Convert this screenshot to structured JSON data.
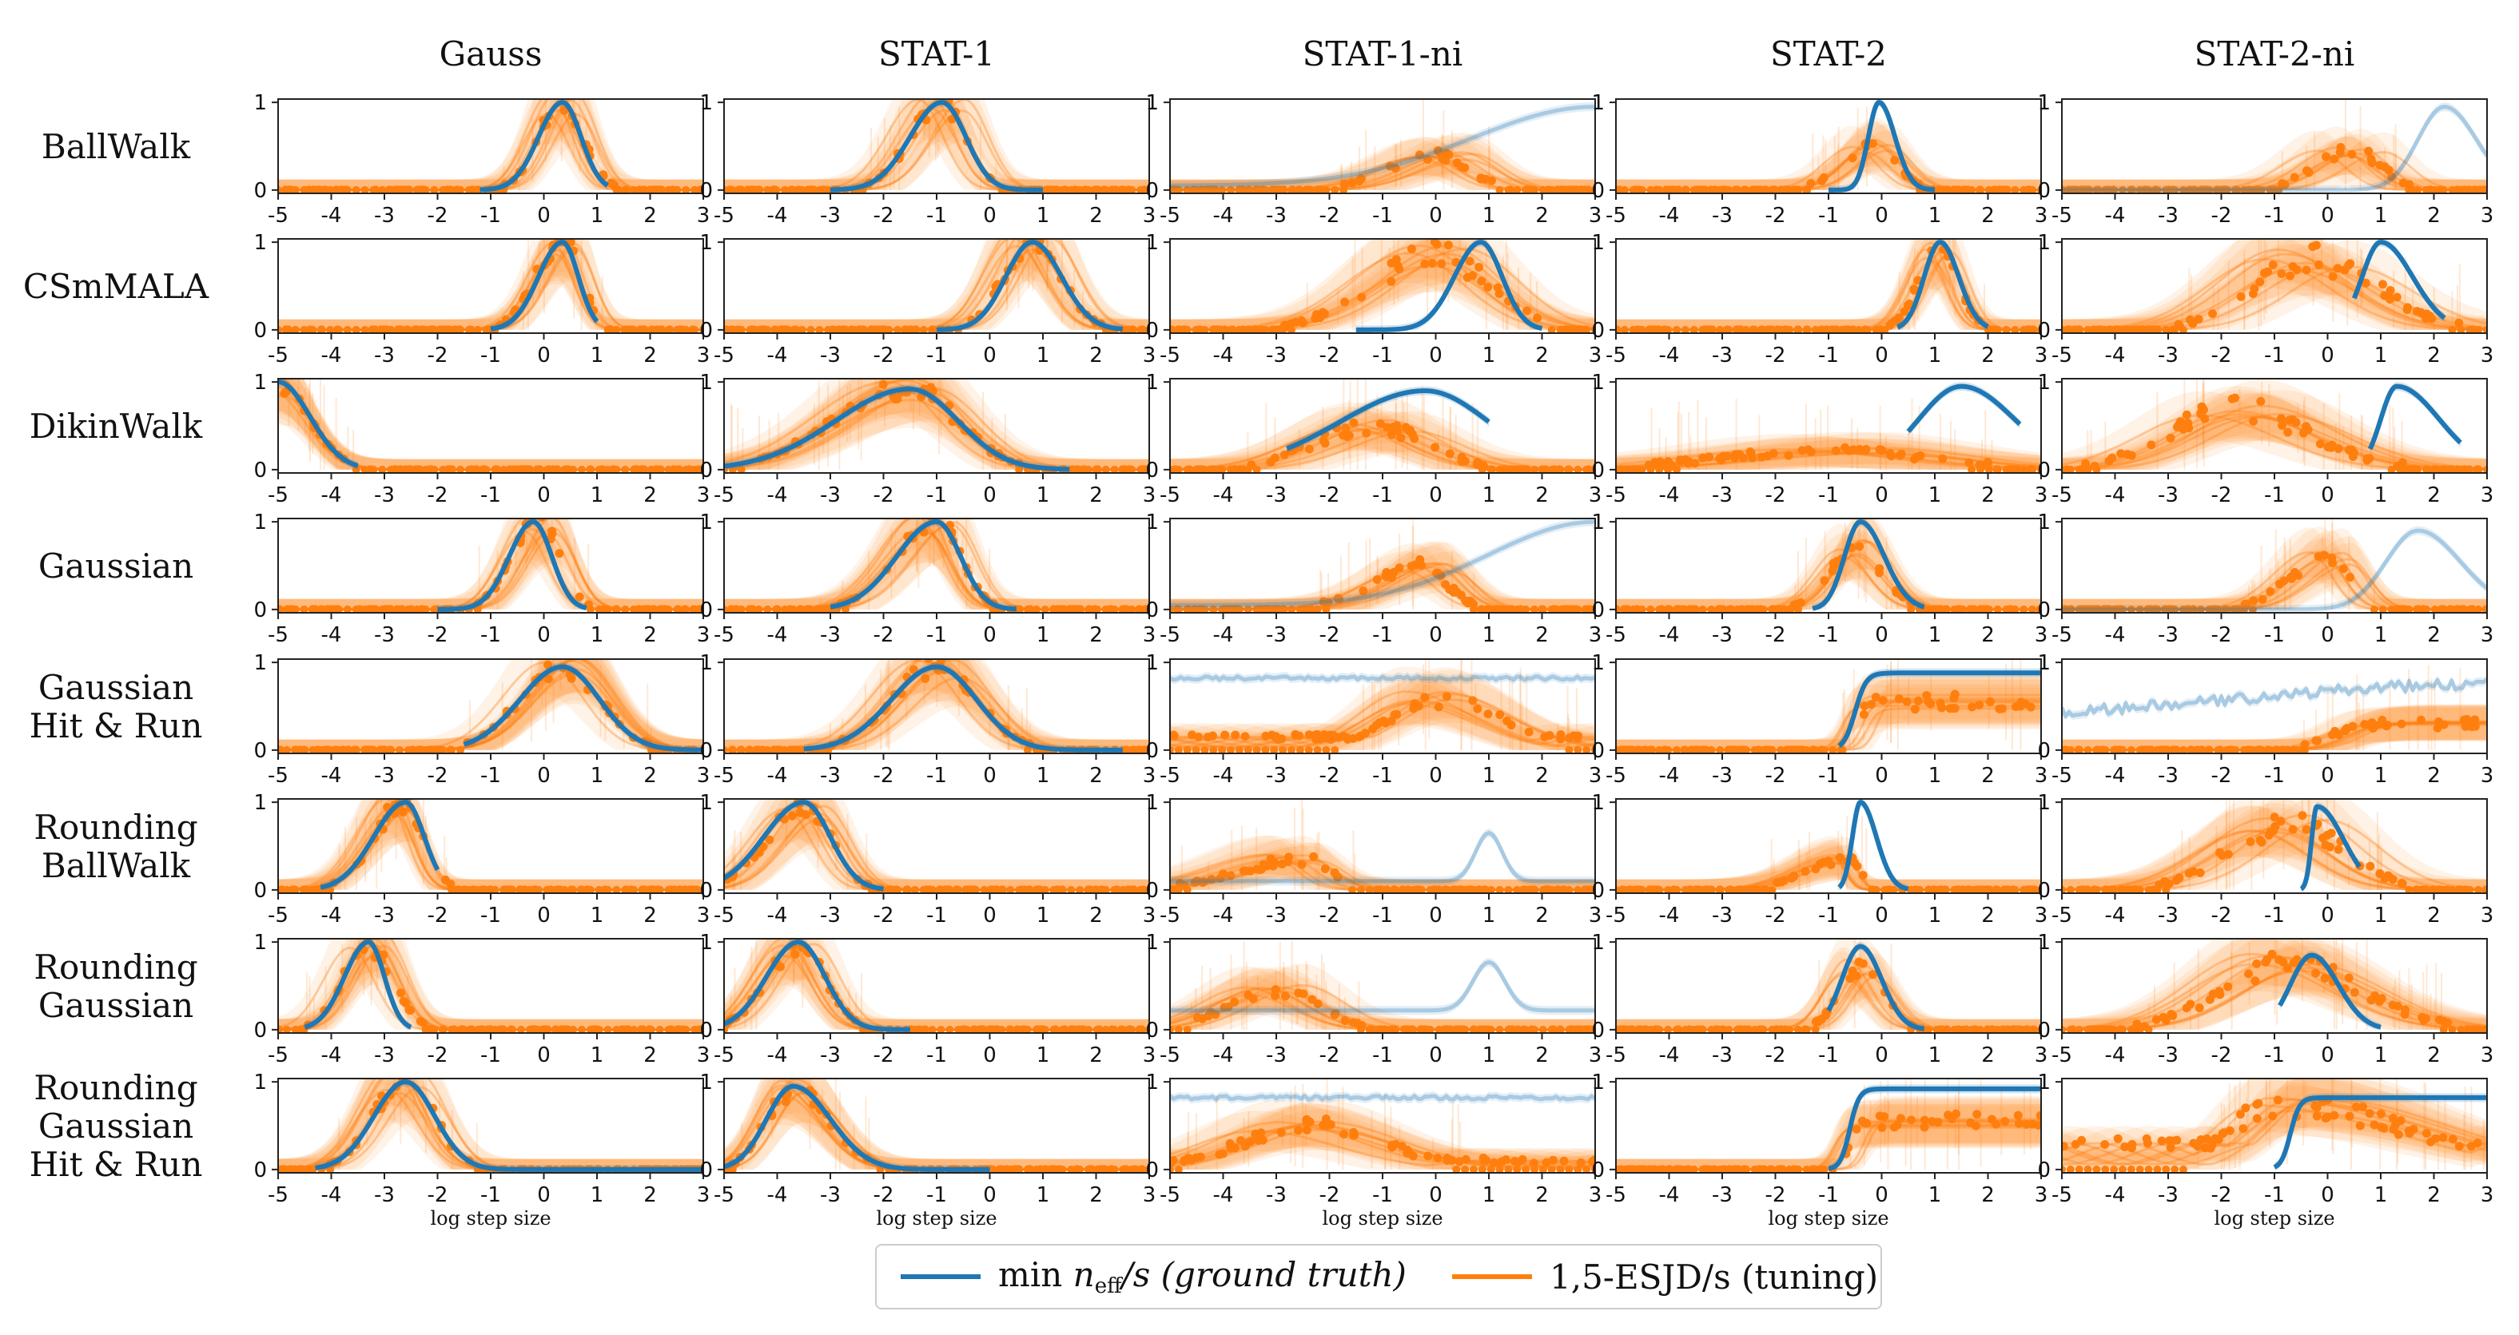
{
  "chart_data": {
    "type": "line",
    "columns": [
      "Gauss",
      "STAT-1",
      "STAT-1-ni",
      "STAT-2",
      "STAT-2-ni"
    ],
    "rows": [
      [
        "BallWalk"
      ],
      [
        "CSmMALA"
      ],
      [
        "DikinWalk"
      ],
      [
        "Gaussian"
      ],
      [
        "Gaussian",
        "Hit & Run"
      ],
      [
        "Rounding",
        "BallWalk"
      ],
      [
        "Rounding",
        "Gaussian"
      ],
      [
        "Rounding",
        "Gaussian",
        "Hit & Run"
      ]
    ],
    "xlim": [
      -5,
      3
    ],
    "ylim": [
      0,
      1
    ],
    "x_ticks": [
      "-5",
      "-4",
      "-3",
      "-2",
      "-1",
      "0",
      "1",
      "2",
      "3"
    ],
    "y_ticks": [
      "0",
      "1"
    ],
    "xlabel": "log step size",
    "grid": false,
    "legend": {
      "placement": "bottom-center"
    },
    "series": [
      {
        "name": "min n_eff/s (ground truth)",
        "color": "#1f77b4"
      },
      {
        "name": "1,5-ESJD/s (tuning)",
        "color": "#ff7f0e"
      }
    ],
    "panels": [
      [
        {
          "blue": {
            "shape": "peak",
            "mu": 0.35,
            "wl": 0.45,
            "wr": 0.35,
            "amp": 1.0,
            "start": -1.2,
            "end": 1.2
          },
          "orange": {
            "shape": "peak",
            "mu": 0.35,
            "wl": 0.45,
            "wr": 0.4,
            "amp": 1.0,
            "spread": 0.3
          }
        },
        {
          "blue": {
            "shape": "peak",
            "mu": -0.9,
            "wl": 0.6,
            "wr": 0.45,
            "amp": 1.0,
            "start": -3.0,
            "end": 1.0
          },
          "orange": {
            "shape": "peak",
            "mu": -0.9,
            "wl": 0.6,
            "wr": 0.45,
            "amp": 1.0,
            "spread": 0.5
          }
        },
        {
          "blue": {
            "shape": "rising",
            "mu": 3.0,
            "w": 2.3,
            "base": 0.05,
            "amp": 0.9,
            "faded": true
          },
          "orange": {
            "shape": "peak",
            "mu": 0.0,
            "wl": 0.9,
            "wr": 0.6,
            "amp": 0.4,
            "spread": 0.7
          }
        },
        {
          "blue": {
            "shape": "peak",
            "mu": -0.05,
            "wl": 0.2,
            "wr": 0.3,
            "amp": 1.0,
            "start": -1.0,
            "end": 1.0
          },
          "orange": {
            "shape": "peak",
            "mu": -0.2,
            "wl": 0.55,
            "wr": 0.45,
            "amp": 0.5,
            "spread": 0.35
          }
        },
        {
          "blue": {
            "shape": "peak",
            "mu": 2.2,
            "wl": 0.5,
            "wr": 0.6,
            "amp": 0.95,
            "faded": true
          },
          "orange": {
            "shape": "peak",
            "mu": 0.5,
            "wl": 0.7,
            "wr": 0.5,
            "amp": 0.45,
            "spread": 0.7
          }
        }
      ],
      [
        {
          "blue": {
            "shape": "peak",
            "mu": 0.35,
            "wl": 0.45,
            "wr": 0.3,
            "amp": 1.0,
            "start": -1.0,
            "end": 1.0
          },
          "orange": {
            "shape": "peak",
            "mu": 0.35,
            "wl": 0.5,
            "wr": 0.35,
            "amp": 1.0,
            "spread": 0.3
          }
        },
        {
          "blue": {
            "shape": "peak",
            "mu": 0.8,
            "wl": 0.5,
            "wr": 0.55,
            "amp": 1.0,
            "start": -1.0,
            "end": 2.5
          },
          "orange": {
            "shape": "peak",
            "mu": 0.8,
            "wl": 0.55,
            "wr": 0.55,
            "amp": 1.0,
            "spread": 0.4
          }
        },
        {
          "blue": {
            "shape": "peak",
            "mu": 0.85,
            "wl": 0.5,
            "wr": 0.4,
            "amp": 1.0,
            "start": -1.5,
            "end": 2.0
          },
          "orange": {
            "shape": "peak",
            "mu": 0.0,
            "wl": 1.2,
            "wr": 1.0,
            "amp": 0.85,
            "spread": 0.8
          }
        },
        {
          "blue": {
            "shape": "peak",
            "mu": 1.1,
            "wl": 0.3,
            "wr": 0.35,
            "amp": 1.0,
            "start": 0.3,
            "end": 2.0
          },
          "orange": {
            "shape": "peak",
            "mu": 1.1,
            "wl": 0.4,
            "wr": 0.35,
            "amp": 0.9,
            "spread": 0.3
          }
        },
        {
          "blue": {
            "shape": "peak",
            "mu": 1.0,
            "wl": 0.35,
            "wr": 0.6,
            "amp": 1.0,
            "start": 0.5,
            "end": 2.2
          },
          "orange": {
            "shape": "peak",
            "mu": -0.3,
            "wl": 1.1,
            "wr": 1.2,
            "amp": 0.8,
            "spread": 0.9
          }
        }
      ],
      [
        {
          "blue": {
            "shape": "falling",
            "mu": -5.0,
            "w": 0.6,
            "amp": 1.0,
            "start": -5.0,
            "end": -3.5
          },
          "orange": {
            "shape": "falling",
            "mu": -5.0,
            "w": 0.6,
            "amp": 0.95,
            "spread": 0.15
          }
        },
        {
          "blue": {
            "shape": "peak",
            "mu": -1.5,
            "wl": 1.4,
            "wr": 0.9,
            "amp": 0.92,
            "start": -5.0,
            "end": 1.5
          },
          "orange": {
            "shape": "peak",
            "mu": -1.5,
            "wl": 1.4,
            "wr": 0.9,
            "amp": 0.92,
            "spread": 0.5
          }
        },
        {
          "blue": {
            "shape": "peak",
            "mu": -0.2,
            "wl": 1.6,
            "wr": 1.2,
            "amp": 0.9,
            "start": -2.8,
            "end": 1.0
          },
          "orange": {
            "shape": "peak",
            "mu": -1.2,
            "wl": 1.1,
            "wr": 1.0,
            "amp": 0.5,
            "spread": 0.8
          }
        },
        {
          "blue": {
            "shape": "peak",
            "mu": 1.5,
            "wl": 0.8,
            "wr": 1.0,
            "amp": 0.95,
            "start": 0.5,
            "end": 2.6
          },
          "orange": {
            "shape": "peak",
            "mu": -1.0,
            "wl": 2.0,
            "wr": 1.8,
            "amp": 0.22,
            "spread": 1.0
          }
        },
        {
          "blue": {
            "shape": "peak",
            "mu": 1.3,
            "wl": 0.3,
            "wr": 0.8,
            "amp": 0.95,
            "start": 0.8,
            "end": 2.5
          },
          "orange": {
            "shape": "peak",
            "mu": -1.8,
            "wl": 1.2,
            "wr": 1.4,
            "amp": 0.7,
            "spread": 0.9
          }
        }
      ],
      [
        {
          "blue": {
            "shape": "peak",
            "mu": -0.2,
            "wl": 0.45,
            "wr": 0.35,
            "amp": 1.0,
            "start": -2.0,
            "end": 0.8
          },
          "orange": {
            "shape": "peak",
            "mu": -0.1,
            "wl": 0.5,
            "wr": 0.4,
            "amp": 1.0,
            "spread": 0.35
          }
        },
        {
          "blue": {
            "shape": "peak",
            "mu": -1.0,
            "wl": 0.75,
            "wr": 0.45,
            "amp": 1.0,
            "start": -3.0,
            "end": 0.5
          },
          "orange": {
            "shape": "peak",
            "mu": -1.0,
            "wl": 0.75,
            "wr": 0.45,
            "amp": 1.0,
            "spread": 0.4
          }
        },
        {
          "blue": {
            "shape": "rising",
            "mu": 3.0,
            "w": 2.0,
            "base": 0.05,
            "amp": 0.95,
            "faded": true
          },
          "orange": {
            "shape": "peak",
            "mu": -0.3,
            "wl": 0.9,
            "wr": 0.5,
            "amp": 0.5,
            "spread": 0.6
          }
        },
        {
          "blue": {
            "shape": "peak",
            "mu": -0.4,
            "wl": 0.3,
            "wr": 0.45,
            "amp": 1.0,
            "start": -1.3,
            "end": 0.8
          },
          "orange": {
            "shape": "peak",
            "mu": -0.5,
            "wl": 0.5,
            "wr": 0.5,
            "amp": 0.7,
            "spread": 0.35
          }
        },
        {
          "blue": {
            "shape": "peak",
            "mu": 1.7,
            "wl": 0.6,
            "wr": 0.8,
            "amp": 0.9,
            "faded": true
          },
          "orange": {
            "shape": "peak",
            "mu": 0.0,
            "wl": 0.7,
            "wr": 0.4,
            "amp": 0.6,
            "spread": 0.5
          }
        }
      ],
      [
        {
          "blue": {
            "shape": "peak",
            "mu": 0.35,
            "wl": 0.8,
            "wr": 0.7,
            "amp": 0.95,
            "start": -1.5,
            "end": 3.0
          },
          "orange": {
            "shape": "peak",
            "mu": 0.35,
            "wl": 0.8,
            "wr": 0.7,
            "amp": 0.95,
            "spread": 0.35
          }
        },
        {
          "blue": {
            "shape": "peak",
            "mu": -1.0,
            "wl": 0.85,
            "wr": 0.75,
            "amp": 0.95,
            "start": -3.5,
            "end": 2.5
          },
          "orange": {
            "shape": "peak",
            "mu": -1.0,
            "wl": 0.85,
            "wr": 0.75,
            "amp": 0.95,
            "spread": 0.45
          }
        },
        {
          "blue": {
            "shape": "flat",
            "level": 0.82,
            "noise": 0.02,
            "faded": true
          },
          "orange": {
            "shape": "peak",
            "mu": 0.0,
            "wl": 0.9,
            "wr": 1.2,
            "amp": 0.6,
            "spread": 0.8,
            "floor": 0.15
          }
        },
        {
          "blue": {
            "shape": "step",
            "x0": -0.5,
            "w": 0.3,
            "level": 0.88,
            "start": -0.8,
            "end": 3.0
          },
          "orange": {
            "shape": "step",
            "x0": -0.5,
            "w": 0.3,
            "level": 0.55,
            "spread": 0.6
          }
        },
        {
          "blue": {
            "shape": "rising",
            "mu": 3.0,
            "w": 4.5,
            "base": 0.35,
            "amp": 0.4,
            "noise": 0.06,
            "faded": true
          },
          "orange": {
            "shape": "step",
            "x0": 0.0,
            "w": 0.8,
            "level": 0.3,
            "spread": 0.7
          }
        }
      ],
      [
        {
          "blue": {
            "shape": "peak",
            "mu": -2.6,
            "wl": 0.6,
            "wr": 0.35,
            "amp": 1.0,
            "start": -4.2,
            "end": -2.0
          },
          "orange": {
            "shape": "peak",
            "mu": -2.6,
            "wl": 0.6,
            "wr": 0.35,
            "amp": 1.0,
            "spread": 0.35
          }
        },
        {
          "blue": {
            "shape": "peak",
            "mu": -3.5,
            "wl": 0.75,
            "wr": 0.5,
            "amp": 1.0,
            "start": -5.0,
            "end": -2.0
          },
          "orange": {
            "shape": "peak",
            "mu": -3.5,
            "wl": 0.7,
            "wr": 0.5,
            "amp": 0.95,
            "spread": 0.4
          }
        },
        {
          "blue": {
            "shape": "bump",
            "base": 0.1,
            "mu": 1.0,
            "w": 0.25,
            "amp": 0.55,
            "faded": true
          },
          "orange": {
            "shape": "peak",
            "mu": -2.5,
            "wl": 1.2,
            "wr": 0.5,
            "amp": 0.35,
            "spread": 0.7
          }
        },
        {
          "blue": {
            "shape": "peak",
            "mu": -0.4,
            "wl": 0.15,
            "wr": 0.3,
            "amp": 1.0,
            "start": -0.8,
            "end": 0.5
          },
          "orange": {
            "shape": "peak",
            "mu": -0.6,
            "wl": 0.8,
            "wr": 0.2,
            "amp": 0.35,
            "spread": 0.3
          }
        },
        {
          "blue": {
            "shape": "peak",
            "mu": -0.2,
            "wl": 0.1,
            "wr": 0.5,
            "amp": 0.95,
            "start": -0.5,
            "end": 0.6
          },
          "orange": {
            "shape": "peak",
            "mu": -0.7,
            "wl": 1.1,
            "wr": 1.0,
            "amp": 0.75,
            "spread": 0.8
          }
        }
      ],
      [
        {
          "blue": {
            "shape": "peak",
            "mu": -3.3,
            "wl": 0.45,
            "wr": 0.3,
            "amp": 1.0,
            "start": -4.5,
            "end": -2.5
          },
          "orange": {
            "shape": "peak",
            "mu": -3.3,
            "wl": 0.5,
            "wr": 0.45,
            "amp": 0.95,
            "spread": 0.35
          }
        },
        {
          "blue": {
            "shape": "peak",
            "mu": -3.6,
            "wl": 0.6,
            "wr": 0.5,
            "amp": 1.0,
            "start": -5.0,
            "end": -1.5
          },
          "orange": {
            "shape": "peak",
            "mu": -3.6,
            "wl": 0.6,
            "wr": 0.5,
            "amp": 0.95,
            "spread": 0.4
          }
        },
        {
          "blue": {
            "shape": "bump",
            "base": 0.22,
            "mu": 1.0,
            "w": 0.3,
            "amp": 0.55,
            "faded": true
          },
          "orange": {
            "shape": "peak",
            "mu": -3.0,
            "wl": 0.9,
            "wr": 0.8,
            "amp": 0.45,
            "spread": 0.6
          }
        },
        {
          "blue": {
            "shape": "peak",
            "mu": -0.4,
            "wl": 0.35,
            "wr": 0.4,
            "amp": 0.95,
            "start": -1.0,
            "end": 0.8
          },
          "orange": {
            "shape": "peak",
            "mu": -0.4,
            "wl": 0.4,
            "wr": 0.45,
            "amp": 0.7,
            "spread": 0.35
          }
        },
        {
          "blue": {
            "shape": "peak",
            "mu": -0.3,
            "wl": 0.4,
            "wr": 0.5,
            "amp": 0.85,
            "start": -0.9,
            "end": 1.0
          },
          "orange": {
            "shape": "peak",
            "mu": -0.8,
            "wl": 1.2,
            "wr": 1.4,
            "amp": 0.75,
            "spread": 0.8
          }
        }
      ],
      [
        {
          "blue": {
            "shape": "peak",
            "mu": -2.6,
            "wl": 0.6,
            "wr": 0.55,
            "amp": 1.0,
            "start": -4.3,
            "end": 3.0
          },
          "orange": {
            "shape": "peak",
            "mu": -2.6,
            "wl": 0.6,
            "wr": 0.55,
            "amp": 1.0,
            "spread": 0.35
          }
        },
        {
          "blue": {
            "shape": "peak",
            "mu": -3.7,
            "wl": 0.5,
            "wr": 0.7,
            "amp": 0.95,
            "start": -5.0,
            "end": 0.0
          },
          "orange": {
            "shape": "peak",
            "mu": -3.7,
            "wl": 0.5,
            "wr": 0.7,
            "amp": 0.9,
            "spread": 0.4
          }
        },
        {
          "blue": {
            "shape": "flat",
            "level": 0.82,
            "noise": 0.02,
            "faded": true
          },
          "orange": {
            "shape": "peak",
            "mu": -2.5,
            "wl": 1.2,
            "wr": 1.5,
            "amp": 0.5,
            "spread": 0.9,
            "floor": 0.1
          }
        },
        {
          "blue": {
            "shape": "step",
            "x0": -0.6,
            "w": 0.25,
            "level": 0.92,
            "start": -1.0,
            "end": 3.0
          },
          "orange": {
            "shape": "step",
            "x0": -0.6,
            "w": 0.3,
            "level": 0.55,
            "spread": 0.6
          }
        },
        {
          "blue": {
            "shape": "step",
            "x0": -0.7,
            "w": 0.25,
            "level": 0.82,
            "start": -1.0,
            "end": 3.0
          },
          "orange": {
            "shape": "peak",
            "mu": -1.0,
            "wl": 0.8,
            "wr": 2.5,
            "amp": 0.75,
            "spread": 0.8,
            "floor": 0.3
          }
        }
      ]
    ]
  },
  "legend": {
    "blue_prefix": "min ",
    "blue_var": "n",
    "blue_sub": "eff",
    "blue_suffix": "/s (ground truth)",
    "orange_label": "1,5-ESJD/s (tuning)"
  }
}
